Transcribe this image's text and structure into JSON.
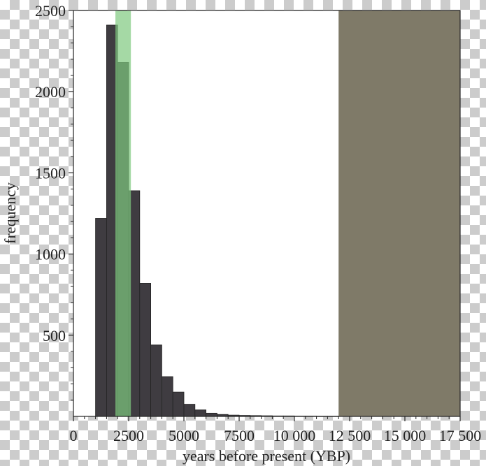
{
  "chart_data": {
    "type": "bar",
    "xlabel": "years before present (YBP)",
    "ylabel": "frequency",
    "xlim": [
      0,
      17500
    ],
    "ylim": [
      0,
      2500
    ],
    "x_ticks": [
      0,
      2500,
      5000,
      7500,
      10000,
      12500,
      15000,
      17500
    ],
    "x_tick_labels": [
      "0",
      "2500",
      "5000",
      "7500",
      "10 000",
      "12 500",
      "15 000",
      "17 500"
    ],
    "y_ticks": [
      500,
      1000,
      1500,
      2000,
      2500
    ],
    "y_tick_labels": [
      "500",
      "1000",
      "1500",
      "2000",
      "2500"
    ],
    "bin_width": 500,
    "bins": [
      {
        "start": 1000,
        "end": 1500,
        "value": 1220
      },
      {
        "start": 1500,
        "end": 2000,
        "value": 2410
      },
      {
        "start": 2000,
        "end": 2500,
        "value": 2180
      },
      {
        "start": 2500,
        "end": 3000,
        "value": 1390
      },
      {
        "start": 3000,
        "end": 3500,
        "value": 820
      },
      {
        "start": 3500,
        "end": 4000,
        "value": 440
      },
      {
        "start": 4000,
        "end": 4500,
        "value": 245
      },
      {
        "start": 4500,
        "end": 5000,
        "value": 150
      },
      {
        "start": 5000,
        "end": 5500,
        "value": 75
      },
      {
        "start": 5500,
        "end": 6000,
        "value": 40
      },
      {
        "start": 6000,
        "end": 6500,
        "value": 20
      },
      {
        "start": 6500,
        "end": 7000,
        "value": 12
      },
      {
        "start": 7000,
        "end": 7500,
        "value": 8
      },
      {
        "start": 7500,
        "end": 8000,
        "value": 6
      },
      {
        "start": 8000,
        "end": 8500,
        "value": 5
      },
      {
        "start": 8500,
        "end": 9000,
        "value": 4
      },
      {
        "start": 9000,
        "end": 9500,
        "value": 3
      },
      {
        "start": 9500,
        "end": 10000,
        "value": 3
      },
      {
        "start": 10000,
        "end": 10500,
        "value": 2
      },
      {
        "start": 10500,
        "end": 11000,
        "value": 2
      },
      {
        "start": 11000,
        "end": 11500,
        "value": 1
      },
      {
        "start": 11500,
        "end": 12000,
        "value": 1
      }
    ],
    "shaded_regions": [
      {
        "start": 1900,
        "end": 2600,
        "color": "#7fc97f",
        "opacity": 0.7
      },
      {
        "start": 12000,
        "end": 17500,
        "color": "#7f7a68",
        "opacity": 1.0
      }
    ],
    "bar_color": "#3f3c41",
    "grid": false,
    "legend": "none"
  }
}
